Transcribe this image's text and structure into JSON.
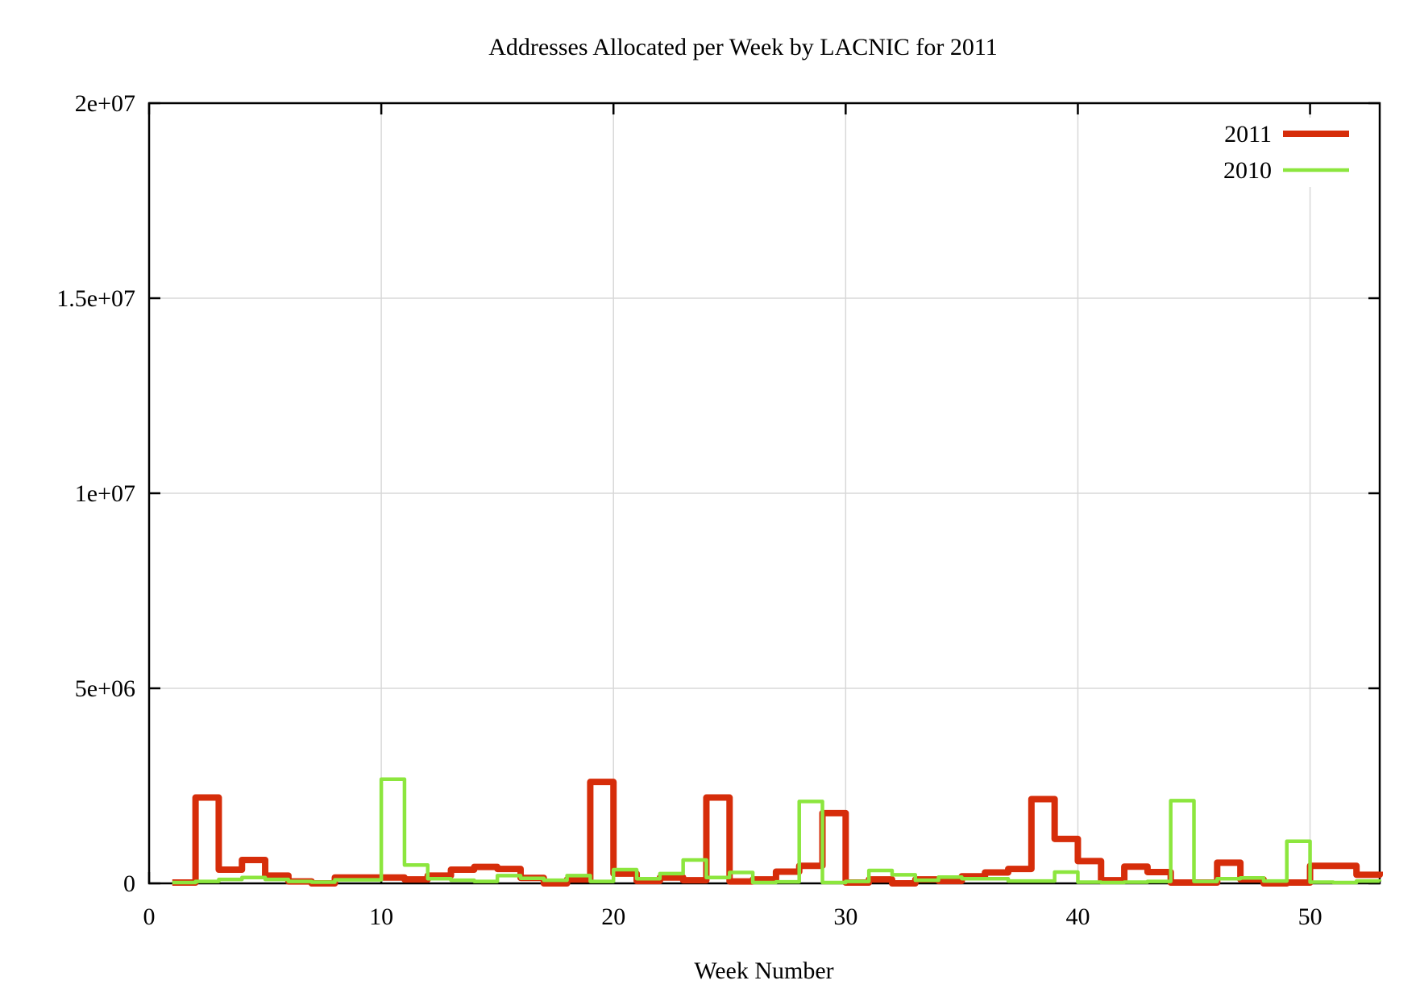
{
  "page": {
    "background": "#ffffff"
  },
  "chart_data": {
    "type": "line",
    "subtype": "steps",
    "title": "Addresses Allocated per Week by LACNIC for 2011",
    "xlabel": "Week Number",
    "ylabel": "",
    "xlim": [
      0,
      53
    ],
    "ylim": [
      0,
      20000000
    ],
    "grid": true,
    "legend_position": "top-right",
    "xticks": [
      {
        "v": 0,
        "label": "0"
      },
      {
        "v": 10,
        "label": "10"
      },
      {
        "v": 20,
        "label": "20"
      },
      {
        "v": 30,
        "label": "30"
      },
      {
        "v": 40,
        "label": "40"
      },
      {
        "v": 50,
        "label": "50"
      }
    ],
    "yticks": [
      {
        "v": 0,
        "label": "0"
      },
      {
        "v": 5000000,
        "label": "5e+06"
      },
      {
        "v": 10000000,
        "label": "1e+07"
      },
      {
        "v": 15000000,
        "label": "1.5e+07"
      },
      {
        "v": 20000000,
        "label": "2e+07"
      }
    ],
    "weeks": [
      1,
      2,
      3,
      4,
      5,
      6,
      7,
      8,
      9,
      10,
      11,
      12,
      13,
      14,
      15,
      16,
      17,
      18,
      19,
      20,
      21,
      22,
      23,
      24,
      25,
      26,
      27,
      28,
      29,
      30,
      31,
      32,
      33,
      34,
      35,
      36,
      37,
      38,
      39,
      40,
      41,
      42,
      43,
      44,
      45,
      46,
      47,
      48,
      49,
      50,
      51,
      52,
      53
    ],
    "series": [
      {
        "name": "2011",
        "color": "#d62d0a",
        "linewidth": 8,
        "values": [
          20000,
          2200000,
          350000,
          600000,
          200000,
          50000,
          0,
          150000,
          150000,
          150000,
          100000,
          200000,
          350000,
          420000,
          370000,
          140000,
          0,
          100000,
          2600000,
          250000,
          60000,
          150000,
          80000,
          2200000,
          50000,
          100000,
          300000,
          450000,
          1800000,
          20000,
          100000,
          0,
          100000,
          60000,
          180000,
          280000,
          370000,
          2160000,
          1140000,
          570000,
          80000,
          430000,
          290000,
          20000,
          20000,
          530000,
          100000,
          0,
          20000,
          450000,
          450000,
          220000,
          300000
        ]
      },
      {
        "name": "2010",
        "color": "#8ce63e",
        "linewidth": 4.5,
        "values": [
          20000,
          50000,
          100000,
          150000,
          100000,
          50000,
          30000,
          90000,
          90000,
          2670000,
          470000,
          120000,
          80000,
          50000,
          200000,
          130000,
          80000,
          200000,
          50000,
          350000,
          120000,
          250000,
          600000,
          150000,
          280000,
          20000,
          40000,
          2100000,
          20000,
          50000,
          330000,
          220000,
          80000,
          160000,
          120000,
          120000,
          60000,
          60000,
          290000,
          30000,
          20000,
          30000,
          50000,
          2120000,
          50000,
          120000,
          140000,
          60000,
          1080000,
          30000,
          20000,
          60000,
          50000
        ]
      }
    ],
    "colors": {
      "grid": "#d8d8d8",
      "axis": "#000000",
      "legend_background": "#ffffff"
    }
  }
}
